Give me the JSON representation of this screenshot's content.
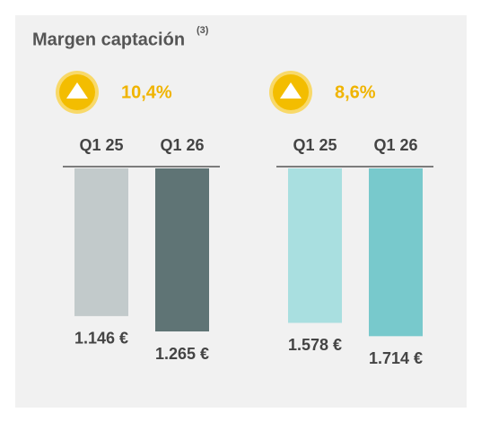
{
  "title": "Margen captación",
  "title_note": "(3)",
  "chart_data": [
    {
      "type": "bar",
      "change": {
        "value": 10.4,
        "label": "10,4%"
      },
      "categories": [
        "Q1 25",
        "Q1 26"
      ],
      "values": [
        1146,
        1265
      ],
      "value_labels": [
        "1.146 €",
        "1.265 €"
      ],
      "colors": [
        "#c2cacb",
        "#5f7475"
      ],
      "ylim": [
        0,
        1390
      ]
    },
    {
      "type": "bar",
      "change": {
        "value": 8.6,
        "label": "8,6%"
      },
      "categories": [
        "Q1 25",
        "Q1 26"
      ],
      "values": [
        1578,
        1714
      ],
      "value_labels": [
        "1.578 €",
        "1.714 €"
      ],
      "colors": [
        "#a9dfe0",
        "#78c9cc"
      ],
      "ylim": [
        0,
        1830
      ]
    }
  ]
}
